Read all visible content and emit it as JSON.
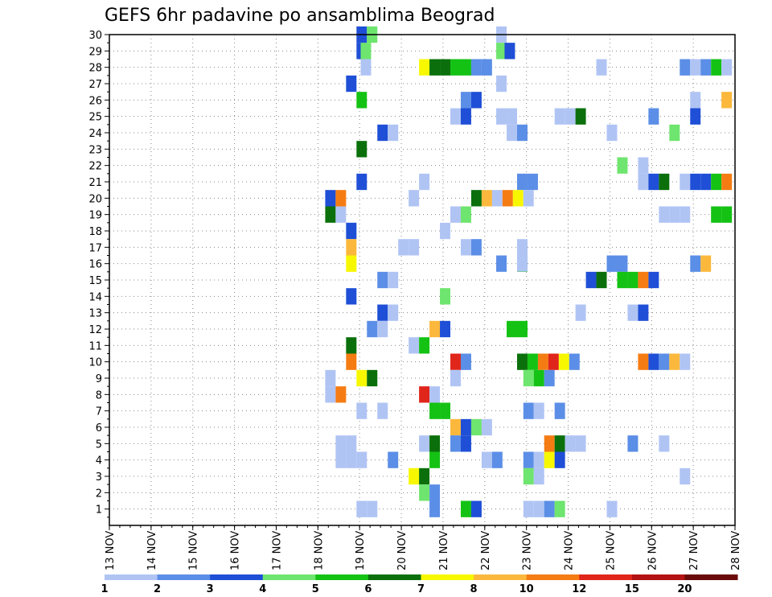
{
  "chart_data": {
    "type": "heatmap",
    "title": "GEFS 6hr padavine po ansamblima Beograd",
    "x_tick_labels": [
      "13 NOV",
      "14 NOV",
      "15 NOV",
      "16 NOV",
      "17 NOV",
      "18 NOV",
      "19 NOV",
      "20 NOV",
      "21 NOV",
      "22 NOV",
      "23 NOV",
      "24 NOV",
      "25 NOV",
      "26 NOV",
      "27 NOV",
      "28 NOV"
    ],
    "y_tick_labels": [
      "1",
      "2",
      "3",
      "4",
      "5",
      "6",
      "7",
      "8",
      "9",
      "10",
      "11",
      "12",
      "13",
      "14",
      "15",
      "16",
      "17",
      "18",
      "19",
      "20",
      "21",
      "22",
      "23",
      "24",
      "25",
      "26",
      "27",
      "28",
      "29",
      "30"
    ],
    "x_range_days": [
      13,
      28
    ],
    "y_range": [
      0,
      30
    ],
    "grid": "dotted",
    "colorbar": {
      "labels": [
        "1",
        "2",
        "3",
        "4",
        "5",
        "6",
        "7",
        "8",
        "10",
        "12",
        "15",
        "20"
      ],
      "colors": [
        "#b0c4f4",
        "#5b8ee6",
        "#1f4fd6",
        "#6ee56e",
        "#14c214",
        "#0b700b",
        "#f7f700",
        "#fbb83c",
        "#f57c13",
        "#e0251b",
        "#b31212",
        "#6b0a0a"
      ]
    },
    "cells": [
      [
        19.05,
        30,
        3
      ],
      [
        19.3,
        30,
        4
      ],
      [
        22.4,
        30,
        1
      ],
      [
        19.05,
        29,
        3
      ],
      [
        19.15,
        29,
        4
      ],
      [
        22.4,
        29,
        4
      ],
      [
        22.6,
        29,
        3
      ],
      [
        19.15,
        28,
        1
      ],
      [
        20.55,
        28,
        7
      ],
      [
        20.8,
        28,
        6
      ],
      [
        21.05,
        28,
        6
      ],
      [
        21.3,
        28,
        5
      ],
      [
        21.55,
        28,
        5
      ],
      [
        21.8,
        28,
        2
      ],
      [
        22.05,
        28,
        2
      ],
      [
        24.8,
        28,
        1
      ],
      [
        26.8,
        28,
        2
      ],
      [
        27.05,
        28,
        1
      ],
      [
        27.3,
        28,
        2
      ],
      [
        27.55,
        28,
        5
      ],
      [
        27.8,
        28,
        1
      ],
      [
        18.8,
        27,
        3
      ],
      [
        22.4,
        27,
        1
      ],
      [
        19.05,
        26,
        5
      ],
      [
        21.55,
        26,
        2
      ],
      [
        21.8,
        26,
        3
      ],
      [
        27.05,
        26,
        1
      ],
      [
        27.8,
        26,
        8
      ],
      [
        21.3,
        25,
        1
      ],
      [
        21.55,
        25,
        3
      ],
      [
        22.4,
        25,
        1
      ],
      [
        22.65,
        25,
        1
      ],
      [
        23.8,
        25,
        1
      ],
      [
        24.05,
        25,
        1
      ],
      [
        24.3,
        25,
        6
      ],
      [
        26.05,
        25,
        2
      ],
      [
        27.05,
        25,
        3
      ],
      [
        19.55,
        24,
        3
      ],
      [
        19.8,
        24,
        1
      ],
      [
        22.65,
        24,
        1
      ],
      [
        22.9,
        24,
        2
      ],
      [
        25.05,
        24,
        1
      ],
      [
        26.55,
        24,
        4
      ],
      [
        19.05,
        23,
        6
      ],
      [
        25.3,
        22,
        4
      ],
      [
        25.8,
        22,
        1
      ],
      [
        19.05,
        21,
        3
      ],
      [
        20.55,
        21,
        1
      ],
      [
        22.9,
        21,
        2
      ],
      [
        23.15,
        21,
        2
      ],
      [
        25.8,
        21,
        1
      ],
      [
        26.05,
        21,
        3
      ],
      [
        26.3,
        21,
        6
      ],
      [
        26.8,
        21,
        1
      ],
      [
        27.05,
        21,
        3
      ],
      [
        27.3,
        21,
        3
      ],
      [
        27.55,
        21,
        5
      ],
      [
        27.8,
        21,
        9
      ],
      [
        18.3,
        20,
        3
      ],
      [
        18.55,
        20,
        9
      ],
      [
        20.3,
        20,
        1
      ],
      [
        21.8,
        20,
        6
      ],
      [
        22.05,
        20,
        8
      ],
      [
        22.3,
        20,
        1
      ],
      [
        22.55,
        20,
        9
      ],
      [
        22.8,
        20,
        7
      ],
      [
        23.05,
        20,
        1
      ],
      [
        18.3,
        19,
        6
      ],
      [
        18.55,
        19,
        1
      ],
      [
        21.3,
        19,
        1
      ],
      [
        21.55,
        19,
        4
      ],
      [
        26.3,
        19,
        1
      ],
      [
        26.55,
        19,
        1
      ],
      [
        26.8,
        19,
        1
      ],
      [
        27.55,
        19,
        5
      ],
      [
        27.8,
        19,
        5
      ],
      [
        18.8,
        18,
        3
      ],
      [
        21.05,
        18,
        1
      ],
      [
        18.8,
        17,
        8
      ],
      [
        20.05,
        17,
        1
      ],
      [
        20.3,
        17,
        1
      ],
      [
        21.55,
        17,
        1
      ],
      [
        21.8,
        17,
        2
      ],
      [
        22.9,
        17,
        1
      ],
      [
        18.8,
        16,
        7
      ],
      [
        22.4,
        16,
        2
      ],
      [
        22.9,
        16,
        5
      ],
      [
        22.9,
        16.02,
        1
      ],
      [
        25.05,
        16,
        2
      ],
      [
        25.3,
        16,
        2
      ],
      [
        27.05,
        16,
        2
      ],
      [
        27.3,
        16,
        8
      ],
      [
        19.55,
        15,
        2
      ],
      [
        19.8,
        15,
        1
      ],
      [
        24.55,
        15,
        3
      ],
      [
        24.8,
        15,
        6
      ],
      [
        25.3,
        15,
        5
      ],
      [
        25.55,
        15,
        5
      ],
      [
        25.8,
        15,
        9
      ],
      [
        26.05,
        15,
        3
      ],
      [
        18.8,
        14,
        3
      ],
      [
        21.05,
        14,
        4
      ],
      [
        19.55,
        13,
        3
      ],
      [
        19.8,
        13,
        1
      ],
      [
        24.3,
        13,
        1
      ],
      [
        25.55,
        13,
        1
      ],
      [
        25.8,
        13,
        3
      ],
      [
        19.3,
        12,
        2
      ],
      [
        19.55,
        12,
        1
      ],
      [
        20.8,
        12,
        8
      ],
      [
        21.05,
        12,
        3
      ],
      [
        22.65,
        12,
        5
      ],
      [
        22.9,
        12,
        5
      ],
      [
        18.8,
        11,
        6
      ],
      [
        20.3,
        11,
        1
      ],
      [
        20.55,
        11,
        5
      ],
      [
        18.8,
        10,
        9
      ],
      [
        21.3,
        10,
        10
      ],
      [
        21.55,
        10,
        2
      ],
      [
        22.9,
        10,
        6
      ],
      [
        23.15,
        10,
        5
      ],
      [
        23.4,
        10,
        9
      ],
      [
        23.65,
        10,
        10
      ],
      [
        23.9,
        10,
        7
      ],
      [
        24.15,
        10,
        2
      ],
      [
        25.8,
        10,
        9
      ],
      [
        26.05,
        10,
        3
      ],
      [
        26.3,
        10,
        2
      ],
      [
        26.55,
        10,
        8
      ],
      [
        26.8,
        10,
        1
      ],
      [
        18.3,
        9,
        1
      ],
      [
        19.05,
        9,
        7
      ],
      [
        19.3,
        9,
        6
      ],
      [
        21.3,
        9,
        1
      ],
      [
        23.05,
        9,
        4
      ],
      [
        23.3,
        9,
        5
      ],
      [
        23.55,
        9,
        2
      ],
      [
        18.3,
        8,
        1
      ],
      [
        18.55,
        8,
        9
      ],
      [
        20.55,
        8,
        10
      ],
      [
        20.8,
        8,
        1
      ],
      [
        19.05,
        7,
        1
      ],
      [
        19.55,
        7,
        1
      ],
      [
        20.8,
        7,
        5
      ],
      [
        21.05,
        7,
        5
      ],
      [
        23.05,
        7,
        2
      ],
      [
        23.3,
        7,
        1
      ],
      [
        23.8,
        7,
        2
      ],
      [
        21.3,
        6,
        8
      ],
      [
        21.55,
        6,
        3
      ],
      [
        21.8,
        6,
        4
      ],
      [
        22.05,
        6,
        1
      ],
      [
        18.55,
        5,
        1
      ],
      [
        18.8,
        5,
        1
      ],
      [
        20.55,
        5,
        1
      ],
      [
        20.8,
        5,
        6
      ],
      [
        21.3,
        5,
        2
      ],
      [
        21.55,
        5,
        3
      ],
      [
        23.55,
        5,
        9
      ],
      [
        23.8,
        5,
        6
      ],
      [
        24.05,
        5,
        1
      ],
      [
        24.3,
        5,
        1
      ],
      [
        25.55,
        5,
        2
      ],
      [
        26.3,
        5,
        1
      ],
      [
        18.55,
        4,
        1
      ],
      [
        18.8,
        4,
        1
      ],
      [
        19.05,
        4,
        1
      ],
      [
        19.8,
        4,
        2
      ],
      [
        20.8,
        4,
        5
      ],
      [
        22.05,
        4,
        1
      ],
      [
        22.3,
        4,
        2
      ],
      [
        23.05,
        4,
        2
      ],
      [
        23.3,
        4,
        1
      ],
      [
        23.55,
        4,
        7
      ],
      [
        23.8,
        4,
        3
      ],
      [
        20.3,
        3,
        7
      ],
      [
        20.55,
        3,
        6
      ],
      [
        23.05,
        3,
        4
      ],
      [
        23.3,
        3,
        1
      ],
      [
        26.8,
        3,
        1
      ],
      [
        20.55,
        2,
        4
      ],
      [
        20.8,
        2,
        2
      ],
      [
        19.05,
        1,
        1
      ],
      [
        19.3,
        1,
        1
      ],
      [
        20.8,
        1,
        2
      ],
      [
        21.55,
        1,
        5
      ],
      [
        21.8,
        1,
        3
      ],
      [
        23.05,
        1,
        1
      ],
      [
        23.3,
        1,
        1
      ],
      [
        23.55,
        1,
        2
      ],
      [
        23.8,
        1,
        4
      ],
      [
        25.05,
        1,
        1
      ]
    ]
  }
}
